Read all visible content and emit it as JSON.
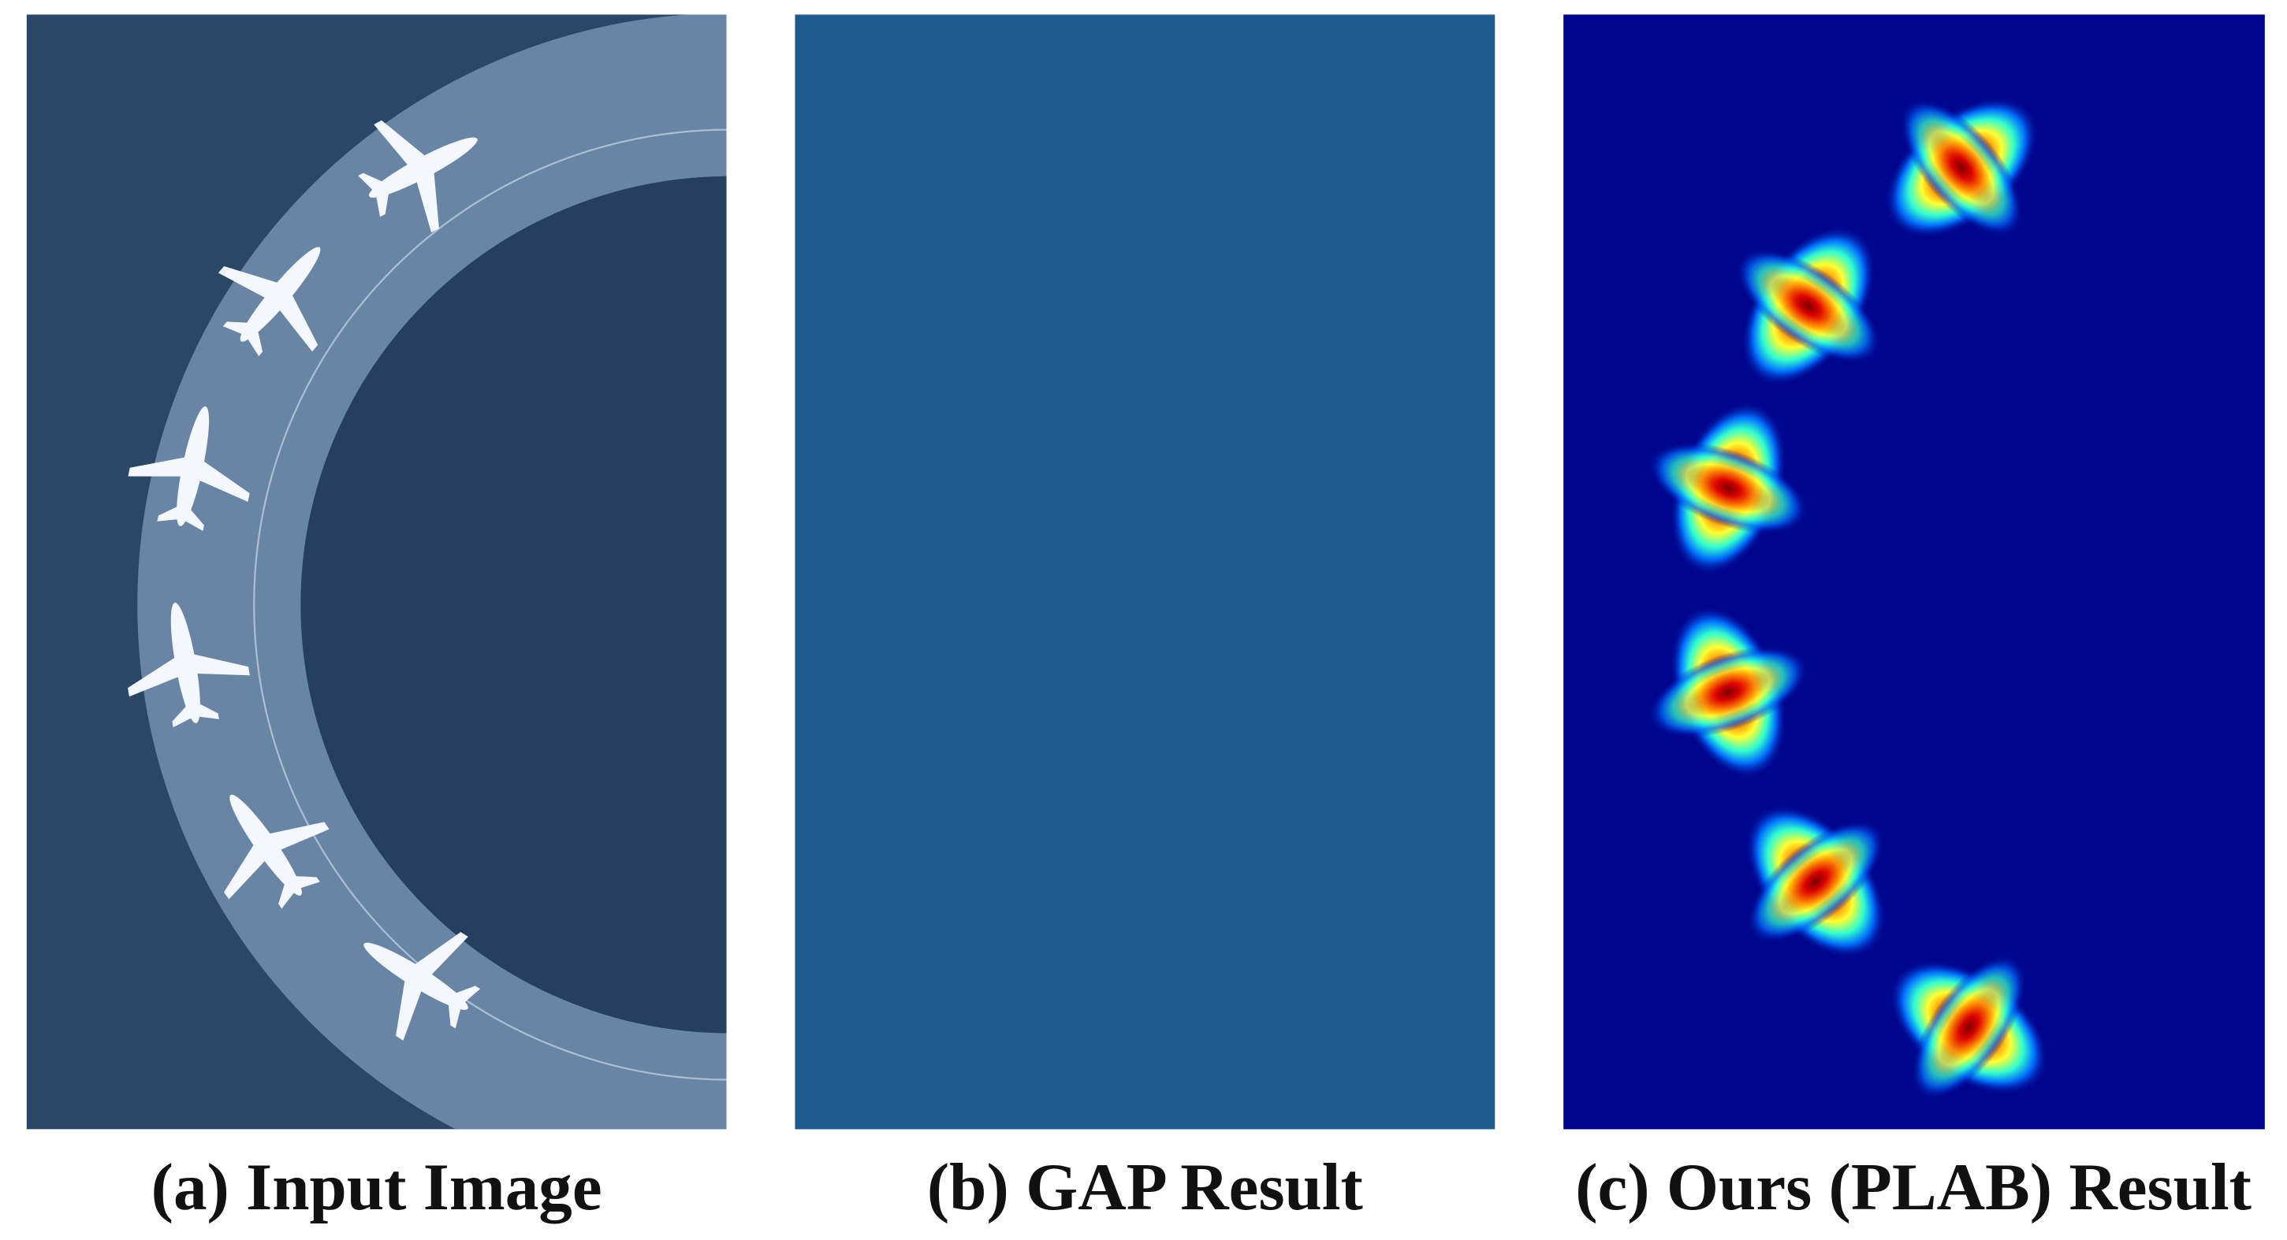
{
  "panels": [
    {
      "label": "(a) Input Image"
    },
    {
      "label": "(b) GAP Result"
    },
    {
      "label": "(c) Ours (PLAB) Result"
    }
  ]
}
